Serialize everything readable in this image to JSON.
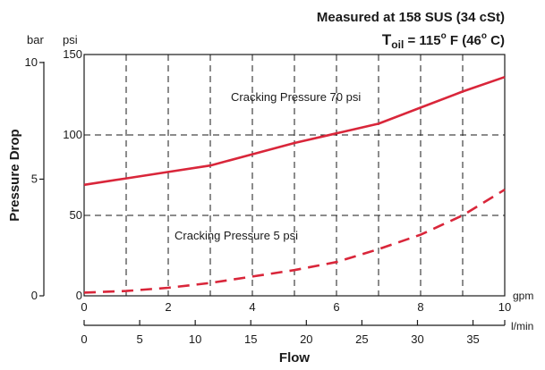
{
  "chart_data": {
    "type": "line",
    "title_line1": "Measured at 158 SUS  (34 cSt)",
    "title_line2": {
      "prefix": "T",
      "subscript": "oil",
      "middle": " = 115",
      "sup1": "o",
      "unit1": " F  (46",
      "sup2": "o",
      "unit2": " C)"
    },
    "ylabel": "Pressure Drop",
    "xlabel": "Flow",
    "y_unit_left": "bar",
    "y_unit_right": "psi",
    "x_unit_top": "gpm",
    "x_unit_bottom": "l/min",
    "xlim_gpm": [
      0,
      10
    ],
    "ylim_psi": [
      0,
      150
    ],
    "x_ticks_gpm": [
      "0",
      "2",
      "4",
      "6",
      "8",
      "10"
    ],
    "x_ticks_lpm": [
      "0",
      "5",
      "10",
      "15",
      "20",
      "25",
      "30",
      "35"
    ],
    "y_ticks_psi": [
      "0",
      "50",
      "100",
      "150"
    ],
    "y_ticks_bar": [
      "0",
      "5",
      "10"
    ],
    "grid": true,
    "series": [
      {
        "name": "Cracking Pressure 70 psi",
        "style": "solid",
        "color": "#d9263a",
        "x": [
          0,
          1,
          2,
          3,
          4,
          5,
          6,
          7,
          8,
          9,
          10
        ],
        "y": [
          69,
          73,
          77,
          81,
          88,
          95,
          101,
          107,
          117,
          127,
          136
        ]
      },
      {
        "name": "Cracking Pressure 5 psi",
        "style": "dashed",
        "color": "#d9263a",
        "x": [
          0,
          1,
          2,
          3,
          4,
          5,
          6,
          7,
          8,
          9,
          10
        ],
        "y": [
          2,
          3,
          5,
          8,
          12,
          16,
          21,
          29,
          38,
          50,
          66
        ]
      }
    ]
  }
}
